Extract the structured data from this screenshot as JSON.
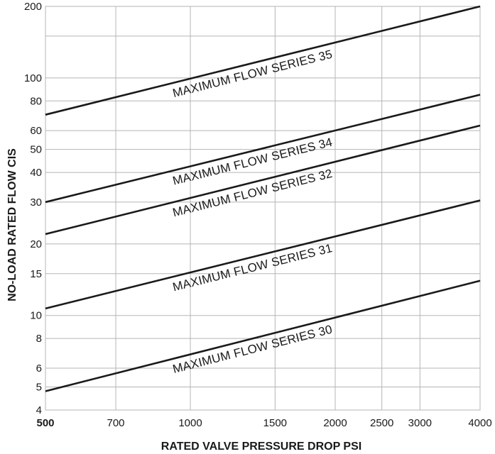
{
  "chart_data": {
    "type": "line",
    "title": "",
    "xlabel": "RATED VALVE PRESSURE DROP PSI",
    "ylabel": "NO-LOAD RATED FLOW CIS",
    "xscale": "log",
    "yscale": "log",
    "xlim": [
      500,
      4000
    ],
    "ylim": [
      4,
      200
    ],
    "grid": true,
    "x_ticks": [
      500,
      700,
      1000,
      1500,
      2000,
      2500,
      3000,
      4000
    ],
    "x_tick_labels": [
      "500",
      "700",
      "1000",
      "1500",
      "2000",
      "2500",
      "3000",
      "4000"
    ],
    "y_ticks": [
      4,
      5,
      6,
      8,
      10,
      15,
      20,
      30,
      40,
      50,
      60,
      80,
      100,
      200
    ],
    "y_tick_labels": [
      "4",
      "5",
      "6",
      "8",
      "10",
      "15",
      "20",
      "30",
      "40",
      "50",
      "60",
      "80",
      "100",
      "200"
    ],
    "y_minor_gridlines": [
      150
    ],
    "series": [
      {
        "name": "MAXIMUM FLOW SERIES 35",
        "x": [
          500,
          4000
        ],
        "y": [
          70,
          200
        ]
      },
      {
        "name": "MAXIMUM FLOW SERIES 34",
        "x": [
          500,
          4000
        ],
        "y": [
          30,
          85
        ]
      },
      {
        "name": "MAXIMUM FLOW SERIES 32",
        "x": [
          500,
          4000
        ],
        "y": [
          22,
          63
        ]
      },
      {
        "name": "MAXIMUM FLOW SERIES 31",
        "x": [
          500,
          4000
        ],
        "y": [
          10.7,
          30.5
        ]
      },
      {
        "name": "MAXIMUM FLOW SERIES 30",
        "x": [
          500,
          4000
        ],
        "y": [
          4.8,
          14
        ]
      }
    ],
    "colors": {
      "line": "#1a1a1a",
      "grid": "#b5b5b5"
    }
  }
}
